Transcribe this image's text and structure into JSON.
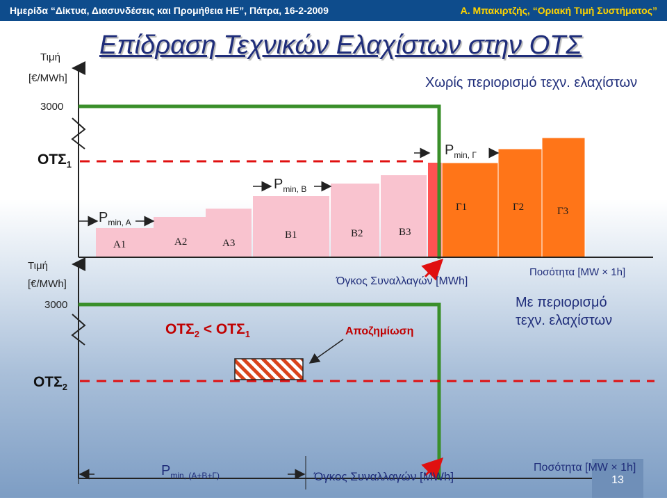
{
  "header": {
    "left": "Ημερίδα “Δίκτυα, Διασυνδέσεις και Προμήθεια ΗΕ”, Πάτρα, 16-2-2009",
    "right": "Α. Μπακιρτζής, “Οριακή Τιμή Συστήματος”"
  },
  "title": "Επίδραση Τεχνικών Ελαχίστων στην ΟΤΣ",
  "top_panel": {
    "subtitle": "Χωρίς περιορισμό τεχν. ελαχίστων",
    "y_label_1": "Τιμή",
    "y_label_2": "[€/MWh]",
    "y_tick": "3000",
    "ots_label": "ΟΤΣ",
    "ots_sub": "1",
    "pmin_a": "P",
    "pmin_a_sub": "min, A",
    "pmin_b": "P",
    "pmin_b_sub": "min, B",
    "pmin_g": "P",
    "pmin_g_sub": "min, Γ",
    "blocks_a": [
      "A1",
      "A2",
      "A3"
    ],
    "blocks_b": [
      "B1",
      "B2",
      "B3"
    ],
    "blocks_g": [
      "Γ1",
      "Γ2",
      "Γ3"
    ],
    "x_label": "Όγκος Συναλλαγών [MWh]",
    "x_label_right": "Ποσότητα [MW × 1h]"
  },
  "bottom_panel": {
    "subtitle_1": "Με περιορισμό",
    "subtitle_2": "τεχν. ελαχίστων",
    "y_label_1": "Τιμή",
    "y_label_2": "[€/MWh]",
    "y_tick": "3000",
    "comparison": "ΟΤΣ",
    "comparison_sub": "2",
    "comparison_mid": " < ΟΤΣ",
    "comparison_sub2": "1",
    "compensation": "Αποζημίωση",
    "ots_label": "ΟΤΣ",
    "ots_sub": "2",
    "pmin_total": "P",
    "pmin_total_sub": "min, (A+B+Γ)",
    "x_label": "Όγκος Συναλλαγών [MWh]",
    "x_label_right": "Ποσότητα [MW × 1h]"
  },
  "page_number": "13",
  "colors": {
    "block_pink": "#f9c3cf",
    "block_red": "#ff5252",
    "block_orange": "#ff7518",
    "green_line": "#3a8f2a",
    "dashed_red": "#e01010",
    "title_blue": "#1f2d7a"
  }
}
